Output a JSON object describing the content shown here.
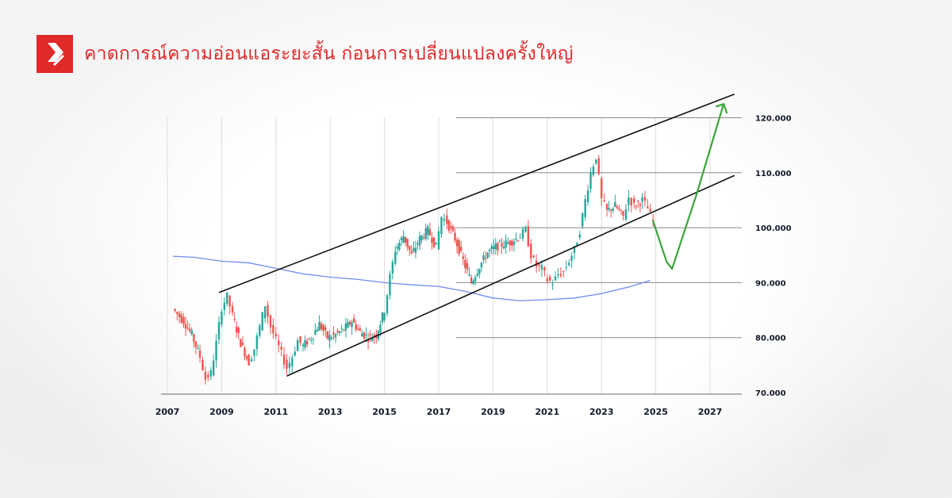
{
  "header": {
    "title": "คาดการณ์ความอ่อนแอระยะสั้น ก่อนการเปลี่ยนแปลงครั้งใหญ่",
    "logo_icon": "brand-logo-red-square-arrow",
    "accent_color": "#e02a2a"
  },
  "chart_data": {
    "type": "candlestick",
    "title": "",
    "xlabel": "",
    "ylabel": "",
    "x_ticks": [
      "2007",
      "2009",
      "2011",
      "2013",
      "2015",
      "2017",
      "2019",
      "2021",
      "2023",
      "2025",
      "2027"
    ],
    "y_ticks": [
      "70.000",
      "80.000",
      "90.000",
      "100.000",
      "110.000",
      "120.000"
    ],
    "xlim": [
      2007,
      2028
    ],
    "ylim": [
      70,
      120
    ],
    "grid": "vertical lines at x ticks; horizontal lines at 80, 90, 100, 110, 120 on the right",
    "colors": {
      "up": "#26a69a",
      "down": "#ef5350",
      "forecast": "#3aa53a",
      "moving_average": "#6f8df0",
      "channel": "#111111"
    },
    "price_path": [
      [
        2007.2,
        85.2
      ],
      [
        2007.6,
        83.0
      ],
      [
        2007.9,
        80.5
      ],
      [
        2008.2,
        76.5
      ],
      [
        2008.4,
        72.5
      ],
      [
        2008.6,
        73.5
      ],
      [
        2008.8,
        79.0
      ],
      [
        2009.0,
        85.5
      ],
      [
        2009.2,
        87.5
      ],
      [
        2009.4,
        84.0
      ],
      [
        2009.7,
        79.0
      ],
      [
        2010.0,
        75.5
      ],
      [
        2010.2,
        78.0
      ],
      [
        2010.4,
        82.0
      ],
      [
        2010.6,
        86.0
      ],
      [
        2010.8,
        82.0
      ],
      [
        2011.0,
        79.5
      ],
      [
        2011.2,
        77.0
      ],
      [
        2011.4,
        74.5
      ],
      [
        2011.6,
        76.5
      ],
      [
        2011.8,
        79.5
      ],
      [
        2012.0,
        78.5
      ],
      [
        2012.3,
        80.0
      ],
      [
        2012.6,
        82.5
      ],
      [
        2012.9,
        80.0
      ],
      [
        2013.2,
        80.5
      ],
      [
        2013.5,
        81.5
      ],
      [
        2013.8,
        83.0
      ],
      [
        2014.1,
        81.0
      ],
      [
        2014.4,
        80.0
      ],
      [
        2014.7,
        80.5
      ],
      [
        2015.0,
        85.0
      ],
      [
        2015.2,
        91.0
      ],
      [
        2015.4,
        96.0
      ],
      [
        2015.7,
        98.5
      ],
      [
        2016.0,
        95.0
      ],
      [
        2016.3,
        98.0
      ],
      [
        2016.6,
        99.5
      ],
      [
        2016.9,
        96.5
      ],
      [
        2017.1,
        102.0
      ],
      [
        2017.3,
        101.0
      ],
      [
        2017.6,
        98.0
      ],
      [
        2017.9,
        94.0
      ],
      [
        2018.2,
        90.0
      ],
      [
        2018.5,
        93.0
      ],
      [
        2018.8,
        95.5
      ],
      [
        2019.1,
        96.5
      ],
      [
        2019.4,
        97.0
      ],
      [
        2019.7,
        97.5
      ],
      [
        2020.0,
        98.5
      ],
      [
        2020.2,
        99.5
      ],
      [
        2020.4,
        95.0
      ],
      [
        2020.6,
        93.0
      ],
      [
        2020.8,
        92.5
      ],
      [
        2021.0,
        90.5
      ],
      [
        2021.2,
        90.0
      ],
      [
        2021.4,
        91.5
      ],
      [
        2021.6,
        92.0
      ],
      [
        2021.8,
        94.0
      ],
      [
        2022.0,
        96.0
      ],
      [
        2022.2,
        99.5
      ],
      [
        2022.4,
        105.0
      ],
      [
        2022.6,
        110.0
      ],
      [
        2022.8,
        113.0
      ],
      [
        2023.0,
        105.0
      ],
      [
        2023.2,
        103.0
      ],
      [
        2023.5,
        104.0
      ],
      [
        2023.8,
        102.0
      ],
      [
        2024.0,
        105.5
      ],
      [
        2024.2,
        104.0
      ],
      [
        2024.5,
        105.0
      ],
      [
        2024.7,
        103.5
      ],
      [
        2024.9,
        101.0
      ]
    ],
    "moving_average": [
      [
        2007.2,
        94.8
      ],
      [
        2008.0,
        94.6
      ],
      [
        2009.0,
        93.9
      ],
      [
        2010.0,
        93.6
      ],
      [
        2011.0,
        92.6
      ],
      [
        2012.0,
        91.6
      ],
      [
        2013.0,
        91.0
      ],
      [
        2014.0,
        90.6
      ],
      [
        2015.0,
        90.0
      ],
      [
        2016.0,
        89.6
      ],
      [
        2017.0,
        89.3
      ],
      [
        2018.0,
        88.4
      ],
      [
        2019.0,
        87.2
      ],
      [
        2020.0,
        86.7
      ],
      [
        2021.0,
        86.9
      ],
      [
        2022.0,
        87.2
      ],
      [
        2023.0,
        88.0
      ],
      [
        2024.0,
        89.2
      ],
      [
        2024.8,
        90.4
      ]
    ],
    "channel_upper": [
      [
        2008.9,
        88.2
      ],
      [
        2027.9,
        124.3
      ]
    ],
    "channel_lower": [
      [
        2011.4,
        73.0
      ],
      [
        2027.9,
        109.5
      ]
    ],
    "forecast": [
      [
        2024.9,
        101.2
      ],
      [
        2025.4,
        93.8
      ],
      [
        2025.6,
        92.5
      ],
      [
        2026.5,
        106.0
      ],
      [
        2027.5,
        122.5
      ]
    ],
    "forecast_arrow": "up"
  }
}
